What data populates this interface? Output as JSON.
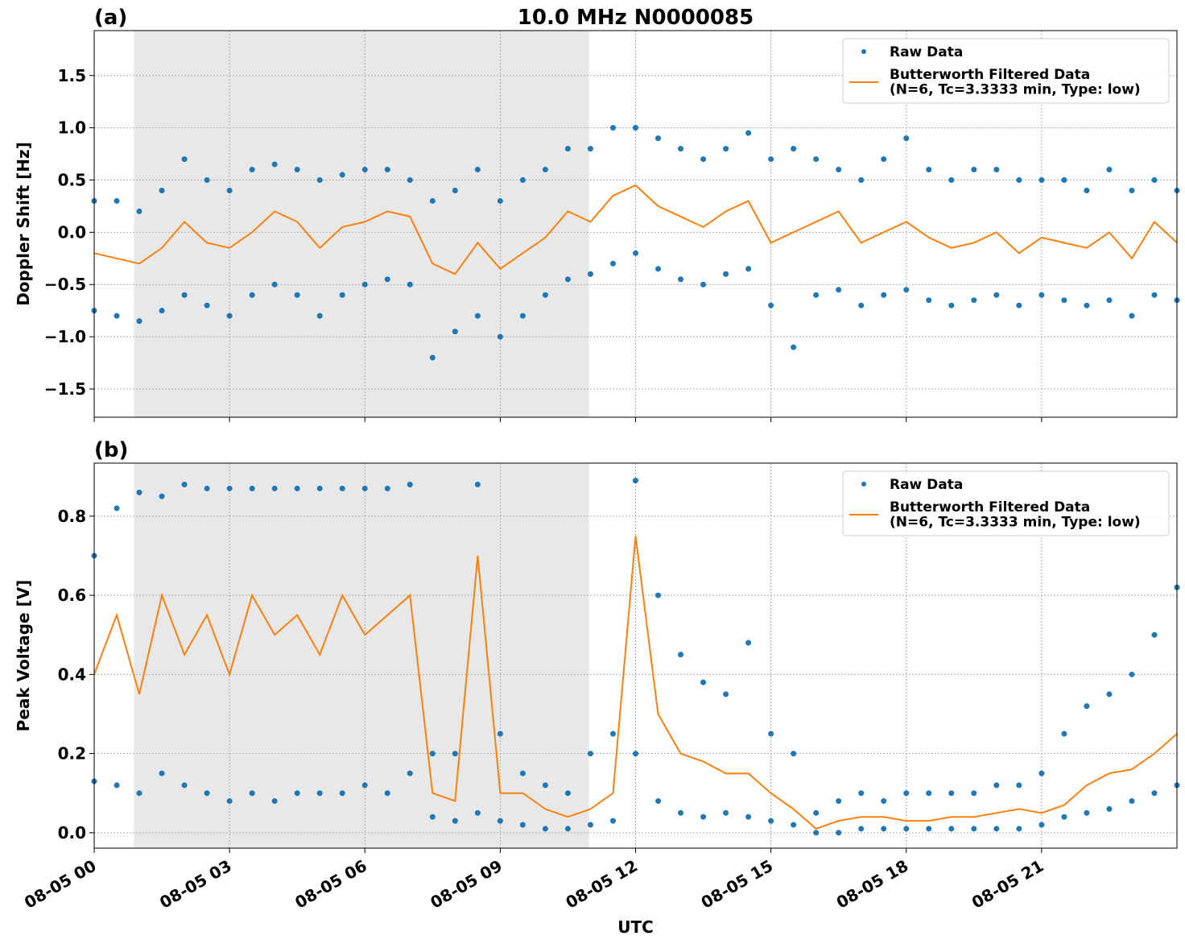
{
  "chart_data": [
    {
      "type": "scatter-line",
      "title": "10.0 MHz N0000085",
      "label": "(a)",
      "ylabel": "Doppler Shift [Hz]",
      "xlim": [
        0,
        24
      ],
      "xticks": [
        0,
        3,
        6,
        9,
        12,
        15,
        18,
        21
      ],
      "ylim": [
        -1.77,
        1.93
      ],
      "yticks": [
        {
          "value": -1.5,
          "label": "−1.5"
        },
        {
          "value": -1.0,
          "label": "−1.0"
        },
        {
          "value": -0.5,
          "label": "−0.5"
        },
        {
          "value": 0.0,
          "label": "0.0"
        },
        0.5,
        {
          "value": 1.0,
          "label": "1.0"
        },
        1.5
      ],
      "grid": true,
      "shaded_span": [
        0.88,
        10.97
      ],
      "legend": "upper right",
      "series": [
        {
          "name": "Raw Data",
          "kind": "scatter",
          "color": "#1f77b4",
          "x": [
            0,
            0,
            0.5,
            0.5,
            1,
            1,
            1.5,
            1.5,
            2,
            2,
            2.5,
            2.5,
            3,
            3,
            3.5,
            3.5,
            4,
            4,
            4.5,
            4.5,
            5,
            5,
            5.5,
            5.5,
            6,
            6,
            6.5,
            6.5,
            7,
            7,
            7.5,
            7.5,
            8,
            8,
            8.5,
            8.5,
            9,
            9,
            9.5,
            9.5,
            10,
            10,
            10.5,
            10.5,
            11,
            11,
            11.5,
            11.5,
            12,
            12,
            12.5,
            12.5,
            13,
            13,
            13.5,
            13.5,
            14,
            14,
            14.5,
            14.5,
            15,
            15,
            15.5,
            15.5,
            16,
            16,
            16.5,
            16.5,
            17,
            17,
            17.5,
            17.5,
            18,
            18,
            18.5,
            18.5,
            19,
            19,
            19.5,
            19.5,
            20,
            20,
            20.5,
            20.5,
            21,
            21,
            21.5,
            21.5,
            22,
            22,
            22.5,
            22.5,
            23,
            23,
            23.5,
            23.5,
            24,
            24
          ],
          "values": [
            0.3,
            -0.75,
            0.3,
            -0.8,
            0.2,
            -0.85,
            0.4,
            -0.75,
            0.7,
            -0.6,
            0.5,
            -0.7,
            0.4,
            -0.8,
            0.6,
            -0.6,
            0.65,
            -0.5,
            0.6,
            -0.6,
            0.5,
            -0.8,
            0.55,
            -0.6,
            0.6,
            -0.5,
            0.6,
            -0.45,
            0.5,
            -0.5,
            0.3,
            -1.2,
            0.4,
            -0.95,
            0.6,
            -0.8,
            0.3,
            -1.0,
            0.5,
            -0.8,
            0.6,
            -0.6,
            0.8,
            -0.45,
            0.8,
            -0.4,
            1.0,
            -0.3,
            1.0,
            -0.2,
            0.9,
            -0.35,
            0.8,
            -0.45,
            0.7,
            -0.5,
            0.8,
            -0.4,
            0.95,
            -0.35,
            0.7,
            -0.7,
            0.8,
            -1.1,
            0.7,
            -0.6,
            0.6,
            -0.55,
            0.5,
            -0.7,
            0.7,
            -0.6,
            0.9,
            -0.55,
            0.6,
            -0.65,
            0.5,
            -0.7,
            0.6,
            -0.65,
            0.6,
            -0.6,
            0.5,
            -0.7,
            0.5,
            -0.6,
            0.5,
            -0.65,
            0.4,
            -0.7,
            0.6,
            -0.65,
            0.4,
            -0.8,
            0.5,
            -0.6,
            0.4,
            -0.65
          ]
        },
        {
          "name": "Butterworth Filtered Data\n(N=6, Tc=3.3333 min, Type: low)",
          "kind": "line",
          "color": "#ff7f0e",
          "x": [
            0,
            0.5,
            1,
            1.5,
            2,
            2.5,
            3,
            3.5,
            4,
            4.5,
            5,
            5.5,
            6,
            6.5,
            7,
            7.5,
            8,
            8.5,
            9,
            9.5,
            10,
            10.5,
            11,
            11.5,
            12,
            12.5,
            13,
            13.5,
            14,
            14.5,
            15,
            15.5,
            16,
            16.5,
            17,
            17.5,
            18,
            18.5,
            19,
            19.5,
            20,
            20.5,
            21,
            21.5,
            22,
            22.5,
            23,
            23.5,
            24
          ],
          "values": [
            -0.2,
            -0.25,
            -0.3,
            -0.15,
            0.1,
            -0.1,
            -0.15,
            0.0,
            0.2,
            0.1,
            -0.15,
            0.05,
            0.1,
            0.2,
            0.15,
            -0.3,
            -0.4,
            -0.1,
            -0.35,
            -0.2,
            -0.05,
            0.2,
            0.1,
            0.35,
            0.45,
            0.25,
            0.15,
            0.05,
            0.2,
            0.3,
            -0.1,
            0.0,
            0.1,
            0.2,
            -0.1,
            0.0,
            0.1,
            -0.05,
            -0.15,
            -0.1,
            0.0,
            -0.2,
            -0.05,
            -0.1,
            -0.15,
            0.0,
            -0.25,
            0.1,
            -0.1
          ]
        }
      ]
    },
    {
      "type": "scatter-line",
      "label": "(b)",
      "ylabel": "Peak Voltage [V]",
      "xlabel": "UTC",
      "xlim": [
        0,
        24
      ],
      "xticks": [
        {
          "value": 0,
          "label": "08-05 00"
        },
        {
          "value": 3,
          "label": "08-05 03"
        },
        {
          "value": 6,
          "label": "08-05 06"
        },
        {
          "value": 9,
          "label": "08-05 09"
        },
        {
          "value": 12,
          "label": "08-05 12"
        },
        {
          "value": 15,
          "label": "08-05 15"
        },
        {
          "value": 18,
          "label": "08-05 18"
        },
        {
          "value": 21,
          "label": "08-05 21"
        }
      ],
      "ylim": [
        -0.039,
        0.934
      ],
      "yticks": [
        {
          "value": 0.0,
          "label": "0.0"
        },
        0.2,
        0.4,
        0.6,
        0.8
      ],
      "grid": true,
      "shaded_span": [
        0.88,
        10.97
      ],
      "legend": "upper right",
      "series": [
        {
          "name": "Raw Data",
          "kind": "scatter",
          "color": "#1f77b4",
          "x": [
            0,
            0,
            0.5,
            0.5,
            1,
            1,
            1.5,
            1.5,
            2,
            2,
            2.5,
            2.5,
            3,
            3,
            3.5,
            3.5,
            4,
            4,
            4.5,
            4.5,
            5,
            5,
            5.5,
            5.5,
            6,
            6,
            6.5,
            6.5,
            7,
            7,
            7.5,
            7.5,
            8,
            8,
            8.5,
            8.5,
            9,
            9,
            9.5,
            9.5,
            10,
            10,
            10.5,
            10.5,
            11,
            11,
            11.5,
            11.5,
            12,
            12,
            12.5,
            12.5,
            13,
            13,
            13.5,
            13.5,
            14,
            14,
            14.5,
            14.5,
            15,
            15,
            15.5,
            15.5,
            16,
            16,
            16.5,
            16.5,
            17,
            17,
            17.5,
            17.5,
            18,
            18,
            18.5,
            18.5,
            19,
            19,
            19.5,
            19.5,
            20,
            20,
            20.5,
            20.5,
            21,
            21,
            21.5,
            21.5,
            22,
            22,
            22.5,
            22.5,
            23,
            23,
            23.5,
            23.5,
            24,
            24
          ],
          "values": [
            0.7,
            0.13,
            0.82,
            0.12,
            0.86,
            0.1,
            0.85,
            0.15,
            0.88,
            0.12,
            0.87,
            0.1,
            0.87,
            0.08,
            0.87,
            0.1,
            0.87,
            0.08,
            0.87,
            0.1,
            0.87,
            0.1,
            0.87,
            0.1,
            0.87,
            0.12,
            0.87,
            0.1,
            0.88,
            0.15,
            0.2,
            0.04,
            0.2,
            0.03,
            0.88,
            0.05,
            0.25,
            0.03,
            0.15,
            0.02,
            0.12,
            0.01,
            0.1,
            0.01,
            0.2,
            0.02,
            0.25,
            0.03,
            0.89,
            0.2,
            0.6,
            0.08,
            0.45,
            0.05,
            0.38,
            0.04,
            0.35,
            0.05,
            0.48,
            0.04,
            0.25,
            0.03,
            0.2,
            0.02,
            0.05,
            0.0,
            0.08,
            0.0,
            0.1,
            0.01,
            0.08,
            0.01,
            0.1,
            0.01,
            0.1,
            0.01,
            0.1,
            0.01,
            0.1,
            0.01,
            0.12,
            0.01,
            0.12,
            0.01,
            0.15,
            0.02,
            0.25,
            0.04,
            0.32,
            0.05,
            0.35,
            0.06,
            0.4,
            0.08,
            0.5,
            0.1,
            0.62,
            0.12
          ]
        },
        {
          "name": "Butterworth Filtered Data\n(N=6, Tc=3.3333 min, Type: low)",
          "kind": "line",
          "color": "#ff7f0e",
          "x": [
            0,
            0.5,
            1,
            1.5,
            2,
            2.5,
            3,
            3.5,
            4,
            4.5,
            5,
            5.5,
            6,
            6.5,
            7,
            7.5,
            8,
            8.5,
            9,
            9.5,
            10,
            10.5,
            11,
            11.5,
            12,
            12.5,
            13,
            13.5,
            14,
            14.5,
            15,
            15.5,
            16,
            16.5,
            17,
            17.5,
            18,
            18.5,
            19,
            19.5,
            20,
            20.5,
            21,
            21.5,
            22,
            22.5,
            23,
            23.5,
            24
          ],
          "values": [
            0.4,
            0.55,
            0.35,
            0.6,
            0.45,
            0.55,
            0.4,
            0.6,
            0.5,
            0.55,
            0.45,
            0.6,
            0.5,
            0.55,
            0.6,
            0.1,
            0.08,
            0.7,
            0.1,
            0.1,
            0.06,
            0.04,
            0.06,
            0.1,
            0.75,
            0.3,
            0.2,
            0.18,
            0.15,
            0.15,
            0.1,
            0.06,
            0.01,
            0.03,
            0.04,
            0.04,
            0.03,
            0.03,
            0.04,
            0.04,
            0.05,
            0.06,
            0.05,
            0.07,
            0.12,
            0.15,
            0.16,
            0.2,
            0.25
          ]
        }
      ]
    }
  ]
}
